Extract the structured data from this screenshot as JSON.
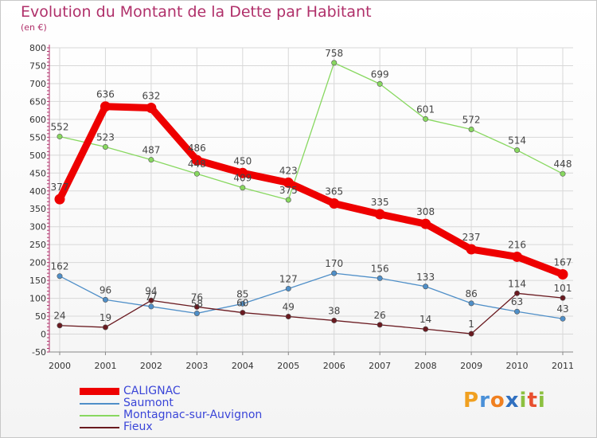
{
  "title": "Evolution du Montant de la Dette par Habitant",
  "subtitle": "(en €)",
  "chart_data": {
    "type": "line",
    "title": "Evolution du Montant de la Dette par Habitant",
    "subtitle": "(en €)",
    "x": [
      2000,
      2001,
      2002,
      2003,
      2004,
      2005,
      2006,
      2007,
      2008,
      2009,
      2010,
      2011
    ],
    "x_tick_labels": [
      "2000",
      "2001",
      "2002",
      "2003",
      "2004",
      "2005",
      "2006",
      "2007",
      "2008",
      "2009",
      "2010",
      "2011"
    ],
    "y_ticks": [
      -50,
      0,
      50,
      100,
      150,
      200,
      250,
      300,
      350,
      400,
      450,
      500,
      550,
      600,
      650,
      700,
      750,
      800
    ],
    "y_tick_labels": [
      "-50",
      "0",
      "50",
      "100",
      "150",
      "200",
      "250",
      "300",
      "350",
      "400",
      "450",
      "500",
      "550",
      "600",
      "650",
      "700",
      "750",
      "800"
    ],
    "ylim": [
      -50,
      800
    ],
    "grid": true,
    "legend_position": "bottom-left",
    "series": [
      {
        "name": "CALIGNAC",
        "color": "#ee0000",
        "values": [
          377,
          636,
          632,
          486,
          450,
          423,
          365,
          335,
          308,
          237,
          216,
          167
        ],
        "labels": [
          "377",
          "636",
          "632",
          "486",
          "450",
          "423",
          "365",
          "335",
          "308",
          "237",
          "216",
          "167"
        ]
      },
      {
        "name": "Saumont",
        "color": "#4f8fc8",
        "values": [
          162,
          96,
          77,
          58,
          85,
          127,
          170,
          156,
          133,
          86,
          63,
          43
        ],
        "labels": [
          "162",
          "96",
          "77",
          "58",
          "85",
          "127",
          "170",
          "156",
          "133",
          "86",
          "63",
          "43"
        ]
      },
      {
        "name": "Montagnac-sur-Auvignon",
        "color": "#88d860",
        "values": [
          552,
          523,
          487,
          448,
          409,
          375,
          758,
          699,
          601,
          572,
          514,
          448
        ],
        "labels": [
          "552",
          "523",
          "487",
          "448",
          "409",
          "375",
          "758",
          "699",
          "601",
          "572",
          "514",
          "448"
        ]
      },
      {
        "name": "Fieux",
        "color": "#6a1a20",
        "values": [
          24,
          19,
          94,
          76,
          60,
          49,
          38,
          26,
          14,
          1,
          114,
          101
        ],
        "labels": [
          "24",
          "19",
          "94",
          "76",
          "60",
          "49",
          "38",
          "26",
          "14",
          "1",
          "114",
          "101"
        ]
      }
    ]
  },
  "logo": {
    "p": "P",
    "r": "r",
    "o1": "o",
    "x": "x",
    "i1": "i",
    "t": "t",
    "i2": "i"
  }
}
